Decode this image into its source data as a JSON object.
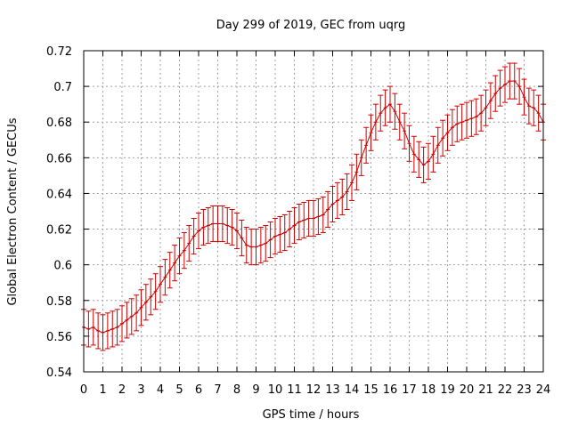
{
  "chart_data": {
    "type": "line",
    "title": "Day 299 of 2019, GEC from uqrg",
    "xlabel": "GPS time / hours",
    "ylabel": "Global Electron Content / GECUs",
    "xlim": [
      0,
      24
    ],
    "ylim": [
      0.54,
      0.72
    ],
    "grid": true,
    "error_bars": true,
    "series_color": "#cc0000",
    "x_ticks": [
      "0",
      "1",
      "2",
      "3",
      "4",
      "5",
      "6",
      "7",
      "8",
      "9",
      "10",
      "11",
      "12",
      "13",
      "14",
      "15",
      "16",
      "17",
      "18",
      "19",
      "20",
      "21",
      "22",
      "23",
      "24"
    ],
    "y_ticks": [
      "0.54",
      "0.56",
      "0.58",
      "0.6",
      "0.62",
      "0.64",
      "0.66",
      "0.68",
      "0.7",
      "0.72"
    ],
    "error": 0.01,
    "x": [
      0,
      0.25,
      0.5,
      0.75,
      1,
      1.25,
      1.5,
      1.75,
      2,
      2.25,
      2.5,
      2.75,
      3,
      3.25,
      3.5,
      3.75,
      4,
      4.25,
      4.5,
      4.75,
      5,
      5.25,
      5.5,
      5.75,
      6,
      6.25,
      6.5,
      6.75,
      7,
      7.25,
      7.5,
      7.75,
      8,
      8.25,
      8.5,
      8.75,
      9,
      9.25,
      9.5,
      9.75,
      10,
      10.25,
      10.5,
      10.75,
      11,
      11.25,
      11.5,
      11.75,
      12,
      12.25,
      12.5,
      12.75,
      13,
      13.25,
      13.5,
      13.75,
      14,
      14.25,
      14.5,
      14.75,
      15,
      15.25,
      15.5,
      15.75,
      16,
      16.25,
      16.5,
      16.75,
      17,
      17.25,
      17.5,
      17.75,
      18,
      18.25,
      18.5,
      18.75,
      19,
      19.25,
      19.5,
      19.75,
      20,
      20.25,
      20.5,
      20.75,
      21,
      21.25,
      21.5,
      21.75,
      22,
      22.25,
      22.5,
      22.75,
      23,
      23.25,
      23.5,
      23.75,
      24
    ],
    "values": [
      0.565,
      0.564,
      0.565,
      0.563,
      0.562,
      0.563,
      0.564,
      0.565,
      0.567,
      0.569,
      0.571,
      0.573,
      0.576,
      0.579,
      0.582,
      0.585,
      0.589,
      0.593,
      0.597,
      0.601,
      0.605,
      0.608,
      0.612,
      0.616,
      0.619,
      0.621,
      0.622,
      0.623,
      0.623,
      0.623,
      0.622,
      0.621,
      0.619,
      0.615,
      0.611,
      0.61,
      0.61,
      0.611,
      0.612,
      0.614,
      0.616,
      0.617,
      0.618,
      0.62,
      0.622,
      0.624,
      0.625,
      0.626,
      0.626,
      0.627,
      0.628,
      0.631,
      0.634,
      0.636,
      0.638,
      0.641,
      0.646,
      0.652,
      0.66,
      0.667,
      0.674,
      0.68,
      0.685,
      0.688,
      0.69,
      0.686,
      0.68,
      0.675,
      0.668,
      0.662,
      0.659,
      0.656,
      0.658,
      0.662,
      0.667,
      0.671,
      0.674,
      0.677,
      0.679,
      0.68,
      0.681,
      0.682,
      0.683,
      0.685,
      0.688,
      0.692,
      0.696,
      0.699,
      0.701,
      0.703,
      0.703,
      0.7,
      0.694,
      0.689,
      0.688,
      0.685,
      0.68
    ]
  }
}
